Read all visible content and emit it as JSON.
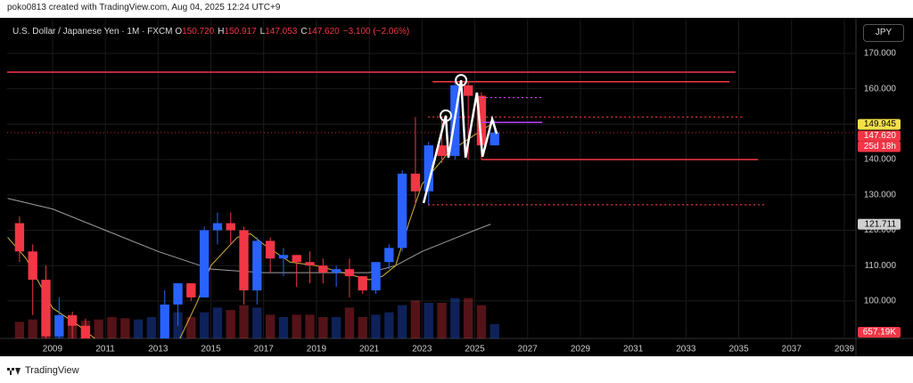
{
  "header": {
    "credit": "poko0813 created with TradingView.com, Aug 04, 2025 12:24 UTC+9",
    "brand": "TradingView",
    "currency_button": "JPY"
  },
  "chart_data": {
    "type": "candlestick",
    "title": "U.S. Dollar / Japanese Yen · 1M · FXCM",
    "ohlc_readout": [
      {
        "label": "O",
        "value": "150.720"
      },
      {
        "label": "H",
        "value": "150.917"
      },
      {
        "label": "L",
        "value": "147.053"
      },
      {
        "label": "C",
        "value": "147.620"
      }
    ],
    "change": "−3.100 (−2.06%)",
    "x": [
      2007.75,
      2008.25,
      2008.75,
      2009.25,
      2009.75,
      2010.25,
      2010.75,
      2011.25,
      2011.75,
      2012.25,
      2012.75,
      2013.25,
      2013.75,
      2014.25,
      2014.75,
      2015.25,
      2015.75,
      2016.25,
      2016.75,
      2017.25,
      2017.75,
      2018.25,
      2018.75,
      2019.25,
      2019.75,
      2020.25,
      2020.75,
      2021.25,
      2021.75,
      2022.25,
      2022.75,
      2023.25,
      2023.75,
      2024.25,
      2024.75,
      2025.25,
      2025.75
    ],
    "open": [
      122,
      114,
      106,
      90,
      96,
      93,
      88,
      81,
      80,
      77,
      79,
      86,
      99,
      105,
      101,
      120,
      122,
      120,
      103,
      117,
      112,
      113,
      111,
      110,
      108,
      109,
      107,
      103,
      111,
      115,
      136,
      131,
      144,
      141,
      161,
      158,
      144
    ],
    "high": [
      124,
      116,
      110,
      101,
      97,
      95,
      89,
      85,
      81,
      84,
      87,
      103,
      105,
      105,
      121,
      125,
      125,
      121,
      118,
      118,
      115,
      113,
      114,
      112,
      110,
      112,
      107,
      111,
      116,
      137,
      152,
      145,
      152,
      162,
      162,
      159,
      151
    ],
    "low": [
      111,
      96,
      87,
      87,
      84,
      88,
      80,
      76,
      75,
      77,
      77,
      86,
      93,
      100,
      101,
      116,
      116,
      99,
      99,
      108,
      107,
      104,
      105,
      105,
      104,
      101,
      102,
      102,
      109,
      114,
      127,
      127,
      139,
      140,
      140,
      140,
      144
    ],
    "close": [
      114,
      106,
      90,
      96,
      93,
      88,
      81,
      80,
      77,
      79,
      86,
      99,
      105,
      101,
      120,
      122,
      120,
      103,
      117,
      112,
      113,
      111,
      110,
      108,
      109,
      107,
      103,
      111,
      115,
      136,
      131,
      144,
      141,
      161,
      158,
      144,
      147.62
    ],
    "up_color": "#2962ff",
    "down_color": "#f23645",
    "volume": {
      "values": [
        700,
        800,
        900,
        850,
        800,
        750,
        800,
        900,
        850,
        800,
        900,
        1200,
        1100,
        900,
        1100,
        1300,
        1200,
        1400,
        1300,
        1000,
        900,
        1000,
        1000,
        900,
        900,
        1300,
        900,
        1000,
        1100,
        1400,
        1600,
        1500,
        1500,
        1700,
        1700,
        1400,
        600
      ],
      "vlim": [
        0,
        3000
      ]
    },
    "moving_averages": [
      {
        "color": "#9e9e9e",
        "x": [
          2007.3,
          2009,
          2011,
          2013,
          2015,
          2017,
          2019,
          2021,
          2022,
          2023,
          2024,
          2025,
          2025.6
        ],
        "values": [
          129,
          126,
          120,
          114,
          109,
          108,
          108,
          108,
          110,
          114,
          117,
          120,
          121.7
        ]
      },
      {
        "color": "#d4b13a",
        "x": [
          2007.3,
          2008,
          2009,
          2010,
          2011,
          2012,
          2013,
          2013.8,
          2014.5,
          2015,
          2016,
          2016.5,
          2017,
          2018,
          2019,
          2020,
          2021,
          2021.5,
          2022,
          2022.5,
          2023,
          2024,
          2025,
          2025.6
        ],
        "values": [
          118,
          112,
          98,
          93,
          87,
          80,
          80,
          89,
          100,
          110,
          118,
          119,
          116,
          111,
          110,
          108,
          106,
          107,
          110,
          122,
          133,
          142,
          147,
          149.9
        ]
      }
    ],
    "levels": [
      {
        "value": 164.7,
        "x": [
          2007.28,
          2034.88
        ],
        "color": "#f23645",
        "style": "solid"
      },
      {
        "value": 162,
        "x": [
          2023.4,
          2034.65
        ],
        "color": "#f23645",
        "style": "solid"
      },
      {
        "value": 157.5,
        "x": [
          2025.25,
          2027.62
        ],
        "color": "#e040fb",
        "style": "dotted"
      },
      {
        "value": 152,
        "x": [
          2023.23,
          2035.22
        ],
        "color": "#f23645",
        "style": "dotted"
      },
      {
        "value": 150.5,
        "x": [
          2025.25,
          2027.55
        ],
        "color": "#c040ff",
        "style": "solid"
      },
      {
        "value": 140,
        "x": [
          2025.25,
          2035.73
        ],
        "color": "#f23645",
        "style": "solid"
      },
      {
        "value": 127.2,
        "x": [
          2023.23,
          2035.96
        ],
        "color": "#f23645",
        "style": "dotted"
      }
    ],
    "pattern": {
      "color": "#ffffff",
      "x": [
        2023.06,
        2023.9,
        2024.0,
        2024.48,
        2024.65,
        2025.08,
        2025.29,
        2025.66,
        2025.83
      ],
      "values": [
        127.7,
        152.4,
        140.5,
        162.4,
        140.5,
        158.9,
        140.8,
        151.4,
        147.3
      ],
      "circles": [
        1,
        3
      ]
    },
    "last_price": 147.62,
    "badges": [
      {
        "value": 149.945,
        "label": "149.945",
        "color": "#f5e04a",
        "text_color": "#000"
      },
      {
        "value": 147.62,
        "label": "147.620",
        "color": "#f23645",
        "text_color": "#fff"
      },
      {
        "value": 121.711,
        "label": "121.711",
        "color": "#cfcfcf",
        "text_color": "#000"
      }
    ],
    "countdown": "25d 18h",
    "volume_label": "657.19K",
    "xlim": [
      2007.28,
      2039.44
    ],
    "xticks": [
      2009,
      2011,
      2013,
      2015,
      2017,
      2019,
      2021,
      2023,
      2025,
      2027,
      2029,
      2031,
      2033,
      2035,
      2037,
      2039
    ],
    "ylim": [
      89.4,
      178.8
    ],
    "yticks": [
      {
        "value": 100,
        "label": "100.000"
      },
      {
        "value": 110,
        "label": "110.000"
      },
      {
        "value": 120,
        "label": "120.000"
      },
      {
        "value": 130,
        "label": "130.000"
      },
      {
        "value": 140,
        "label": "140.000"
      },
      {
        "value": 150,
        "label": "150.000"
      },
      {
        "value": 160,
        "label": "160.000"
      },
      {
        "value": 170,
        "label": "170.000"
      }
    ],
    "grid": true
  }
}
